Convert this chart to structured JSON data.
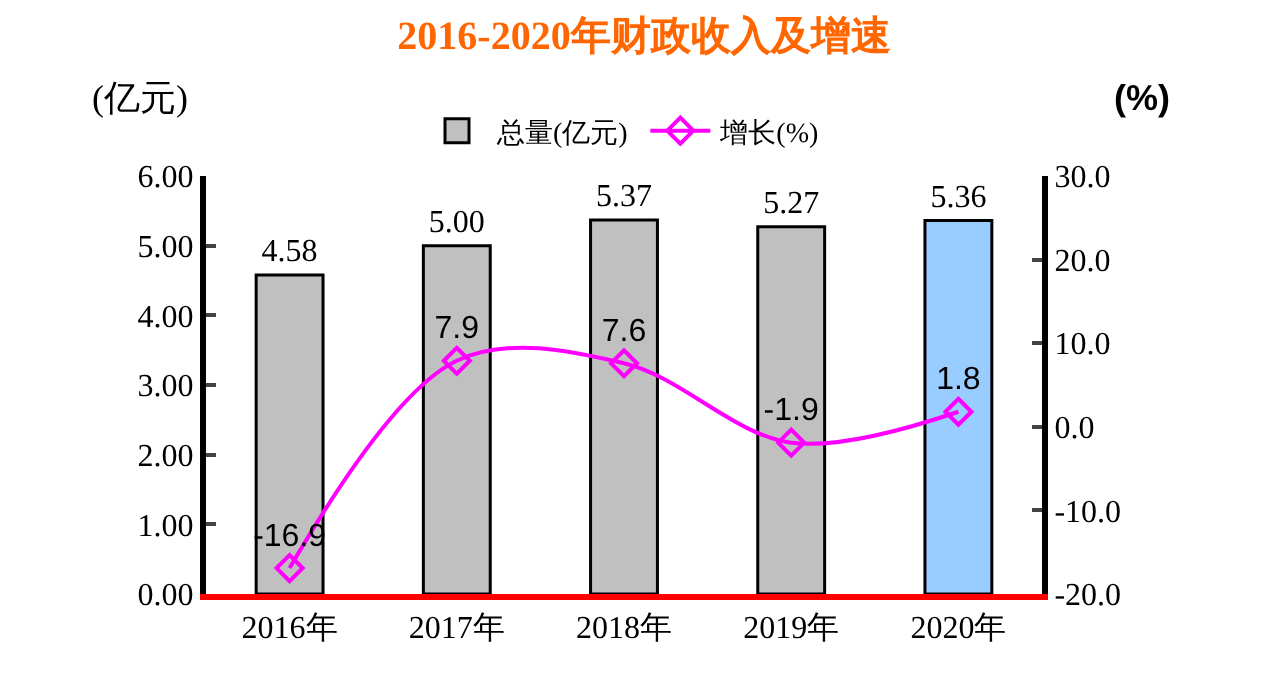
{
  "chart_data": {
    "type": "bar",
    "title": "2016-2020年财政收入及增速",
    "ylabel": "(亿元)",
    "y2label": "(%)",
    "categories": [
      "2016年",
      "2017年",
      "2018年",
      "2019年",
      "2020年"
    ],
    "series": [
      {
        "name": "总量(亿元)",
        "colors": [
          "#c0c0c0",
          "#c0c0c0",
          "#c0c0c0",
          "#c0c0c0",
          "#99ccff"
        ],
        "values": [
          4.58,
          5.0,
          5.37,
          5.27,
          5.36
        ],
        "value_labels": [
          "4.58",
          "5.00",
          "5.37",
          "5.27",
          "5.36"
        ]
      },
      {
        "name": "增长(%)",
        "type": "line",
        "axis": "y2",
        "color": "#ff00ff",
        "marker": "diamond",
        "values": [
          -16.9,
          7.9,
          7.6,
          -1.9,
          1.8
        ],
        "value_labels": [
          "-16.9",
          "7.9",
          "7.6",
          "-1.9",
          "1.8"
        ]
      }
    ],
    "ylim": [
      0,
      6
    ],
    "yticks": [
      {
        "value": 0,
        "label": "0.00"
      },
      {
        "value": 1,
        "label": "1.00"
      },
      {
        "value": 2,
        "label": "2.00"
      },
      {
        "value": 3,
        "label": "3.00"
      },
      {
        "value": 4,
        "label": "4.00"
      },
      {
        "value": 5,
        "label": "5.00"
      },
      {
        "value": 6,
        "label": "6.00"
      }
    ],
    "y2lim": [
      -20,
      30
    ],
    "y2ticks": [
      {
        "value": -20,
        "label": "-20.0"
      },
      {
        "value": -10,
        "label": "-10.0"
      },
      {
        "value": 0,
        "label": "0.0"
      },
      {
        "value": 10,
        "label": "10.0"
      },
      {
        "value": 20,
        "label": "20.0"
      },
      {
        "value": 30,
        "label": "30.0"
      }
    ],
    "legend": "top"
  }
}
